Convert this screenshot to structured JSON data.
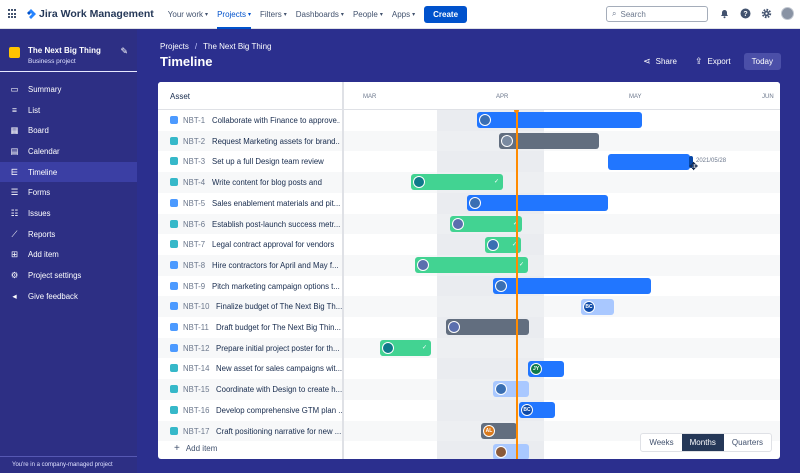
{
  "topnav": {
    "app_name": "Jira Work Management",
    "items": [
      {
        "label": "Your work"
      },
      {
        "label": "Projects"
      },
      {
        "label": "Filters"
      },
      {
        "label": "Dashboards"
      },
      {
        "label": "People"
      },
      {
        "label": "Apps"
      }
    ],
    "create_label": "Create",
    "search_placeholder": "Search"
  },
  "project": {
    "name": "The Next Big Thing",
    "type": "Business project"
  },
  "sidebar": {
    "items": [
      {
        "label": "Summary",
        "icon": "summary-icon"
      },
      {
        "label": "List",
        "icon": "list-icon"
      },
      {
        "label": "Board",
        "icon": "board-icon"
      },
      {
        "label": "Calendar",
        "icon": "calendar-icon"
      },
      {
        "label": "Timeline",
        "icon": "timeline-icon",
        "active": true
      },
      {
        "label": "Forms",
        "icon": "forms-icon"
      },
      {
        "label": "Issues",
        "icon": "issues-icon"
      },
      {
        "label": "Reports",
        "icon": "reports-icon"
      },
      {
        "label": "Add item",
        "icon": "add-item-icon"
      },
      {
        "label": "Project settings",
        "icon": "settings-icon"
      },
      {
        "label": "Give feedback",
        "icon": "megaphone-icon"
      }
    ],
    "footer": "You're in a company-managed project"
  },
  "breadcrumb": {
    "root": "Projects",
    "current": "The Next Big Thing"
  },
  "page_title": "Timeline",
  "actions": {
    "share": "Share",
    "export": "Export",
    "today": "Today"
  },
  "timeline": {
    "asset_header": "Asset",
    "months": [
      "MAR",
      "APR",
      "MAY",
      "JUN"
    ],
    "date_label": "2021/05/28",
    "add_item": "Add item",
    "zoom": [
      "Weeks",
      "Months",
      "Quarters"
    ],
    "zoom_selected": "Months",
    "rows": [
      {
        "key": "NBT-1",
        "title": "Collaborate with Finance to approve...",
        "type": "task"
      },
      {
        "key": "NBT-2",
        "title": "Request Marketing assets for brand...",
        "type": "story"
      },
      {
        "key": "NBT-3",
        "title": "Set up a full Design team review",
        "type": "story"
      },
      {
        "key": "NBT-4",
        "title": "Write content for blog posts and",
        "type": "story"
      },
      {
        "key": "NBT-5",
        "title": "Sales enablement materials and pit...",
        "type": "task"
      },
      {
        "key": "NBT-6",
        "title": "Establish post-launch success metr...",
        "type": "story"
      },
      {
        "key": "NBT-7",
        "title": "Legal contract approval for vendors",
        "type": "story"
      },
      {
        "key": "NBT-8",
        "title": "Hire contractors for April and May f...",
        "type": "task"
      },
      {
        "key": "NBT-9",
        "title": "Pitch marketing campaign options t...",
        "type": "task"
      },
      {
        "key": "NBT-10",
        "title": "Finalize budget of The Next Big Th...",
        "type": "task"
      },
      {
        "key": "NBT-11",
        "title": "Draft budget for The Next Big Thin...",
        "type": "task"
      },
      {
        "key": "NBT-12",
        "title": "Prepare initial project poster for th...",
        "type": "subtask"
      },
      {
        "key": "NBT-14",
        "title": "New asset for sales campaigns wit...",
        "type": "story"
      },
      {
        "key": "NBT-15",
        "title": "Coordinate with Design to create h...",
        "type": "story"
      },
      {
        "key": "NBT-16",
        "title": "Develop comprehensive GTM plan ...",
        "type": "story"
      },
      {
        "key": "NBT-17",
        "title": "Craft positioning narrative for new ...",
        "type": "story"
      }
    ],
    "bar_avatars": {
      "NBT-10": "BC",
      "NBT-14": "JY",
      "NBT-16": "BC",
      "NBT-17": "AL"
    }
  },
  "colors": {
    "brand_blue": "#0052cc",
    "sidebar_bg": "#2d2f84",
    "bar_blue": "#2176ff",
    "bar_gray": "#626e7f",
    "bar_green": "#42d392",
    "today_line": "#ff8b00"
  }
}
